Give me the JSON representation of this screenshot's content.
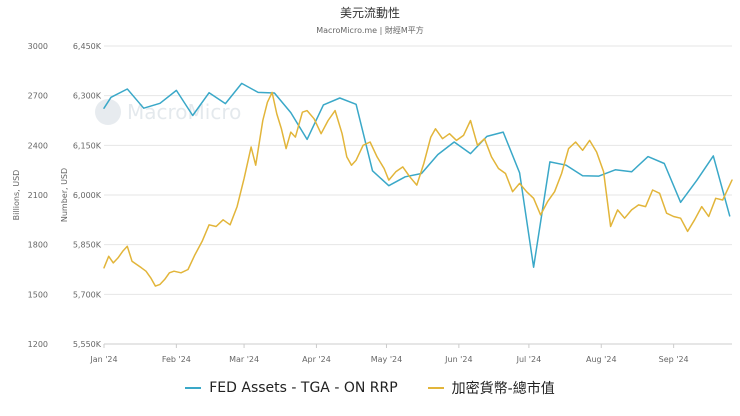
{
  "chart_data": {
    "type": "line",
    "title": "美元流動性",
    "subtitle": "MacroMicro.me | 財經M平方",
    "watermark": "MacroMicro",
    "left_axis": {
      "title": "Billions, USD",
      "ticks": [
        "3000",
        "2700",
        "2400",
        "2100",
        "1800",
        "1500",
        "1200"
      ],
      "range": [
        1200,
        3000
      ]
    },
    "right_axis": {
      "title": "Number, USD",
      "ticks": [
        "6,450K",
        "6,300K",
        "6,150K",
        "6,000K",
        "5,850K",
        "5,700K",
        "5,550K"
      ],
      "range": [
        5550,
        6450
      ]
    },
    "x_labels": [
      "Jan '24",
      "Feb '24",
      "Mar '24",
      "Apr '24",
      "May '24",
      "Jun '24",
      "Jul '24",
      "Aug '24",
      "Sep '24"
    ],
    "x_range": [
      "2024-01-01",
      "2024-09-26"
    ],
    "series": [
      {
        "name": "FED Assets - TGA - ON RRP",
        "color": "#3aa8c8",
        "axis": "right",
        "points": [
          [
            "2024-01-01",
            6262
          ],
          [
            "2024-01-04",
            6295
          ],
          [
            "2024-01-11",
            6320
          ],
          [
            "2024-01-18",
            6262
          ],
          [
            "2024-01-25",
            6277
          ],
          [
            "2024-02-01",
            6316
          ],
          [
            "2024-02-08",
            6240
          ],
          [
            "2024-02-15",
            6309
          ],
          [
            "2024-02-22",
            6276
          ],
          [
            "2024-02-29",
            6337
          ],
          [
            "2024-03-07",
            6310
          ],
          [
            "2024-03-14",
            6308
          ],
          [
            "2024-03-21",
            6249
          ],
          [
            "2024-03-28",
            6168
          ],
          [
            "2024-04-04",
            6272
          ],
          [
            "2024-04-11",
            6293
          ],
          [
            "2024-04-18",
            6274
          ],
          [
            "2024-04-25",
            6073
          ],
          [
            "2024-05-02",
            6028
          ],
          [
            "2024-05-09",
            6055
          ],
          [
            "2024-05-16",
            6065
          ],
          [
            "2024-05-23",
            6122
          ],
          [
            "2024-05-30",
            6160
          ],
          [
            "2024-06-06",
            6125
          ],
          [
            "2024-06-13",
            6177
          ],
          [
            "2024-06-20",
            6190
          ],
          [
            "2024-06-27",
            6067
          ],
          [
            "2024-07-03",
            5782
          ],
          [
            "2024-07-10",
            6100
          ],
          [
            "2024-07-17",
            6090
          ],
          [
            "2024-07-24",
            6058
          ],
          [
            "2024-07-31",
            6057
          ],
          [
            "2024-08-07",
            6076
          ],
          [
            "2024-08-14",
            6070
          ],
          [
            "2024-08-21",
            6116
          ],
          [
            "2024-08-28",
            6095
          ],
          [
            "2024-09-04",
            5978
          ],
          [
            "2024-09-11",
            6045
          ],
          [
            "2024-09-18",
            6118
          ],
          [
            "2024-09-25",
            5937
          ]
        ]
      },
      {
        "name": "加密貨幣-總市值",
        "color": "#e2b53a",
        "axis": "left",
        "points": [
          [
            "2024-01-01",
            1660
          ],
          [
            "2024-01-03",
            1730
          ],
          [
            "2024-01-05",
            1690
          ],
          [
            "2024-01-07",
            1720
          ],
          [
            "2024-01-09",
            1760
          ],
          [
            "2024-01-11",
            1790
          ],
          [
            "2024-01-13",
            1700
          ],
          [
            "2024-01-15",
            1680
          ],
          [
            "2024-01-17",
            1660
          ],
          [
            "2024-01-19",
            1640
          ],
          [
            "2024-01-21",
            1600
          ],
          [
            "2024-01-23",
            1550
          ],
          [
            "2024-01-25",
            1560
          ],
          [
            "2024-01-27",
            1590
          ],
          [
            "2024-01-29",
            1630
          ],
          [
            "2024-01-31",
            1640
          ],
          [
            "2024-02-03",
            1630
          ],
          [
            "2024-02-06",
            1650
          ],
          [
            "2024-02-09",
            1740
          ],
          [
            "2024-02-12",
            1820
          ],
          [
            "2024-02-15",
            1920
          ],
          [
            "2024-02-18",
            1910
          ],
          [
            "2024-02-21",
            1950
          ],
          [
            "2024-02-24",
            1920
          ],
          [
            "2024-02-27",
            2030
          ],
          [
            "2024-03-01",
            2200
          ],
          [
            "2024-03-04",
            2390
          ],
          [
            "2024-03-06",
            2280
          ],
          [
            "2024-03-09",
            2550
          ],
          [
            "2024-03-11",
            2660
          ],
          [
            "2024-03-13",
            2720
          ],
          [
            "2024-03-15",
            2590
          ],
          [
            "2024-03-17",
            2500
          ],
          [
            "2024-03-19",
            2380
          ],
          [
            "2024-03-21",
            2480
          ],
          [
            "2024-03-23",
            2450
          ],
          [
            "2024-03-26",
            2600
          ],
          [
            "2024-03-28",
            2610
          ],
          [
            "2024-03-31",
            2560
          ],
          [
            "2024-04-03",
            2470
          ],
          [
            "2024-04-06",
            2550
          ],
          [
            "2024-04-09",
            2610
          ],
          [
            "2024-04-12",
            2470
          ],
          [
            "2024-04-14",
            2330
          ],
          [
            "2024-04-16",
            2280
          ],
          [
            "2024-04-18",
            2310
          ],
          [
            "2024-04-21",
            2400
          ],
          [
            "2024-04-24",
            2420
          ],
          [
            "2024-04-27",
            2330
          ],
          [
            "2024-04-30",
            2260
          ],
          [
            "2024-05-02",
            2190
          ],
          [
            "2024-05-05",
            2240
          ],
          [
            "2024-05-08",
            2270
          ],
          [
            "2024-05-11",
            2210
          ],
          [
            "2024-05-14",
            2160
          ],
          [
            "2024-05-17",
            2290
          ],
          [
            "2024-05-20",
            2450
          ],
          [
            "2024-05-22",
            2500
          ],
          [
            "2024-05-25",
            2440
          ],
          [
            "2024-05-28",
            2470
          ],
          [
            "2024-05-31",
            2430
          ],
          [
            "2024-06-03",
            2460
          ],
          [
            "2024-06-06",
            2550
          ],
          [
            "2024-06-09",
            2400
          ],
          [
            "2024-06-12",
            2440
          ],
          [
            "2024-06-15",
            2330
          ],
          [
            "2024-06-18",
            2260
          ],
          [
            "2024-06-21",
            2230
          ],
          [
            "2024-06-24",
            2120
          ],
          [
            "2024-06-27",
            2170
          ],
          [
            "2024-06-30",
            2120
          ],
          [
            "2024-07-03",
            2080
          ],
          [
            "2024-07-06",
            1980
          ],
          [
            "2024-07-09",
            2060
          ],
          [
            "2024-07-12",
            2120
          ],
          [
            "2024-07-15",
            2230
          ],
          [
            "2024-07-18",
            2380
          ],
          [
            "2024-07-21",
            2420
          ],
          [
            "2024-07-24",
            2370
          ],
          [
            "2024-07-27",
            2430
          ],
          [
            "2024-07-30",
            2360
          ],
          [
            "2024-08-02",
            2240
          ],
          [
            "2024-08-05",
            1910
          ],
          [
            "2024-08-08",
            2010
          ],
          [
            "2024-08-11",
            1960
          ],
          [
            "2024-08-14",
            2010
          ],
          [
            "2024-08-17",
            2040
          ],
          [
            "2024-08-20",
            2030
          ],
          [
            "2024-08-23",
            2130
          ],
          [
            "2024-08-26",
            2110
          ],
          [
            "2024-08-29",
            1990
          ],
          [
            "2024-09-01",
            1970
          ],
          [
            "2024-09-04",
            1960
          ],
          [
            "2024-09-07",
            1880
          ],
          [
            "2024-09-10",
            1950
          ],
          [
            "2024-09-13",
            2030
          ],
          [
            "2024-09-16",
            1970
          ],
          [
            "2024-09-19",
            2080
          ],
          [
            "2024-09-22",
            2070
          ],
          [
            "2024-09-26",
            2190
          ]
        ]
      }
    ],
    "grid": true,
    "legend_position": "bottom"
  }
}
